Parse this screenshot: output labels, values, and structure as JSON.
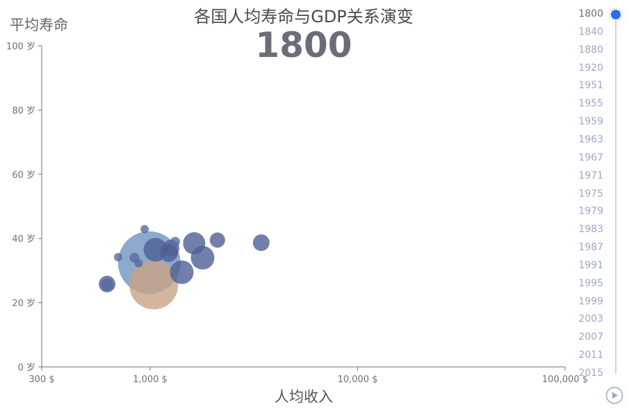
{
  "title": "各国人均寿命与GDP关系演变",
  "current_year": "1800",
  "timeline": {
    "years": [
      "1800",
      "1840",
      "1880",
      "1920",
      "1951",
      "1955",
      "1959",
      "1963",
      "1967",
      "1971",
      "1975",
      "1979",
      "1983",
      "1987",
      "1991",
      "1995",
      "1999",
      "2003",
      "2007",
      "2011",
      "2015"
    ],
    "active_index": 0,
    "colors": {
      "line": "#c8d2ec",
      "active_dot": "#2f6ee8",
      "label": "#9aa7c9",
      "play": "#9aa7c9"
    }
  },
  "chart_data": {
    "type": "scatter",
    "title": "各国人均寿命与GDP关系演变",
    "xlabel": "人均收入",
    "ylabel": "平均寿命",
    "x_scale": "log",
    "xlim": [
      300,
      100000
    ],
    "ylim": [
      0,
      100
    ],
    "x_ticks": [
      300,
      1000,
      10000,
      100000
    ],
    "x_tick_labels": [
      "300 $",
      "1,000 $",
      "10,000 $",
      "100,000 $"
    ],
    "y_ticks": [
      0,
      20,
      40,
      60,
      80,
      100
    ],
    "y_tick_labels": [
      "0 岁",
      "20 岁",
      "40 岁",
      "60 岁",
      "80 岁",
      "100 岁"
    ],
    "points": [
      {
        "x": 620,
        "y": 25.8,
        "size": 12,
        "color": "#4f5f95"
      },
      {
        "x": 620,
        "y": 25.6,
        "size": 9,
        "color": "#5a6aa0"
      },
      {
        "x": 700,
        "y": 34.2,
        "size": 6,
        "color": "#5a6aa0"
      },
      {
        "x": 840,
        "y": 34.0,
        "size": 7,
        "color": "#5a6aa0"
      },
      {
        "x": 880,
        "y": 32.3,
        "size": 6,
        "color": "#5a6aa0"
      },
      {
        "x": 940,
        "y": 42.9,
        "size": 6,
        "color": "#5a6aa0"
      },
      {
        "x": 990,
        "y": 32.5,
        "size": 45,
        "color": "#6f95bf"
      },
      {
        "x": 1040,
        "y": 25.5,
        "size": 35,
        "color": "#c9a384"
      },
      {
        "x": 1060,
        "y": 36.5,
        "size": 17,
        "color": "#4f5f95"
      },
      {
        "x": 1230,
        "y": 35.5,
        "size": 13,
        "color": "#4f5f95"
      },
      {
        "x": 1260,
        "y": 37.0,
        "size": 12,
        "color": "#4f5f95"
      },
      {
        "x": 1320,
        "y": 39.0,
        "size": 7,
        "color": "#5a6aa0"
      },
      {
        "x": 1420,
        "y": 29.5,
        "size": 17,
        "color": "#4f5f95"
      },
      {
        "x": 1630,
        "y": 38.5,
        "size": 16,
        "color": "#4f5f95"
      },
      {
        "x": 1790,
        "y": 34.0,
        "size": 17,
        "color": "#4f5f95"
      },
      {
        "x": 2110,
        "y": 39.5,
        "size": 11,
        "color": "#4f5f95"
      },
      {
        "x": 3430,
        "y": 38.7,
        "size": 12,
        "color": "#4f5f95"
      }
    ]
  }
}
